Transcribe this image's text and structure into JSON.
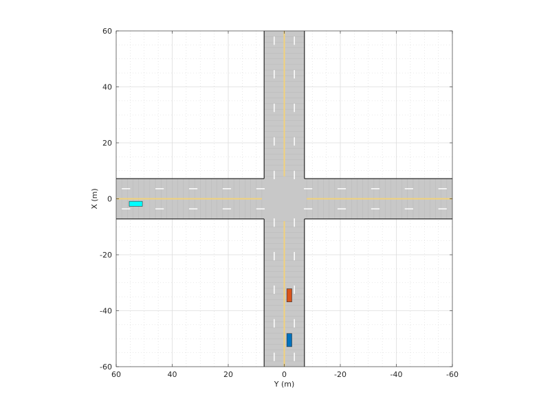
{
  "chart_data": {
    "type": "scatter",
    "xlabel": "Y (m)",
    "ylabel": "X (m)",
    "xlim": [
      60,
      -60
    ],
    "ylim": [
      -60,
      60
    ],
    "x_reversed": true,
    "xticks": [
      60,
      40,
      20,
      0,
      -20,
      -40,
      -60
    ],
    "xtick_labels": [
      "60",
      "40",
      "20",
      "0",
      "-20",
      "-40",
      "-60"
    ],
    "yticks": [
      60,
      40,
      20,
      0,
      -20,
      -40,
      -60
    ],
    "ytick_labels": [
      "60",
      "40",
      "20",
      "0",
      "-20",
      "-40",
      "-60"
    ],
    "grid": true,
    "minor_grid": true,
    "roads": {
      "half_width": 7.2,
      "lane_marking_offset": 3.6,
      "intersection_half": 7.2,
      "surface_color": "#c8c8c8",
      "border_color": "#000000",
      "center_line_color": "#f2d27a",
      "lane_dash_color": "#ffffff"
    },
    "vehicles": [
      {
        "name": "car-cyan",
        "x": -1.8,
        "y": 53.0,
        "length": 4.7,
        "width": 1.8,
        "heading": "along-y",
        "color": "#00ffff"
      },
      {
        "name": "car-orange",
        "x": -34.5,
        "y": -1.8,
        "length": 4.7,
        "width": 1.8,
        "heading": "along-x",
        "color": "#d95319"
      },
      {
        "name": "car-blue",
        "x": -50.5,
        "y": -1.8,
        "length": 4.7,
        "width": 1.8,
        "heading": "along-x",
        "color": "#0072bd"
      }
    ]
  }
}
